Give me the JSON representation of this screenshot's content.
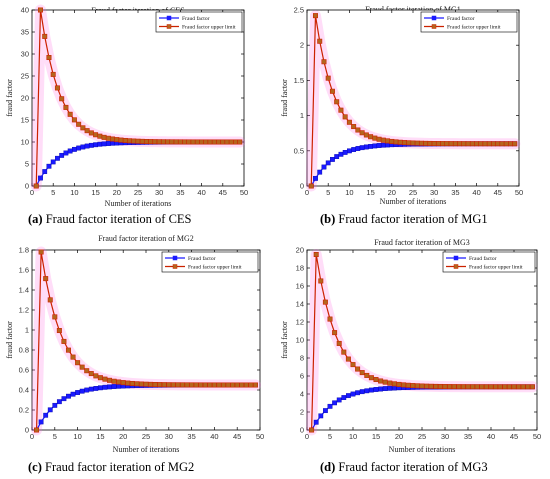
{
  "colors": {
    "base_series": "#1a1aff",
    "upper_series": "#cc2200",
    "upper_marker_fill": "#b5651d",
    "glow": "#ff66dd",
    "frame": "#000000"
  },
  "chart_data": [
    {
      "type": "line",
      "title": "Fraud factor iteration of CES",
      "xlabel": "Number of iterations",
      "ylabel": "fraud factor",
      "xlim": [
        0,
        50
      ],
      "ylim": [
        0,
        40
      ],
      "xticks": [
        0,
        5,
        10,
        15,
        20,
        25,
        30,
        35,
        40,
        45,
        50
      ],
      "yticks": [
        0,
        5,
        10,
        15,
        20,
        25,
        30,
        35,
        40
      ],
      "legend": "top-right",
      "grid": false,
      "caption_letter": "(a)",
      "caption_text": " Fraud factor iteration of CES",
      "series": [
        {
          "name": "Fraud factor",
          "start": 0,
          "limit": 10,
          "decay": 0.82
        },
        {
          "name": "Fraud factor upper limit",
          "start": 0,
          "peak": 40,
          "limit": 10,
          "decay": 0.8
        }
      ]
    },
    {
      "type": "line",
      "title": "Fraud factor iteration of MG1",
      "xlabel": "Number of iterations",
      "ylabel": "fraud factor",
      "xlim": [
        0,
        50
      ],
      "ylim": [
        0,
        2.5
      ],
      "xticks": [
        0,
        5,
        10,
        15,
        20,
        25,
        30,
        35,
        40,
        45,
        50
      ],
      "yticks": [
        0,
        0.5,
        1,
        1.5,
        2,
        2.5
      ],
      "legend": "top-right",
      "grid": false,
      "caption_letter": "(b)",
      "caption_text": " Fraud factor iteration of MG1",
      "series": [
        {
          "name": "Fraud factor",
          "start": 0,
          "limit": 0.6,
          "decay": 0.82
        },
        {
          "name": "Fraud factor upper limit",
          "start": 0,
          "peak": 2.42,
          "limit": 0.6,
          "decay": 0.8
        }
      ]
    },
    {
      "type": "line",
      "title": "Fraud factor iteration of MG2",
      "xlabel": "Number of iterations",
      "ylabel": "fraud factor",
      "xlim": [
        0,
        50
      ],
      "ylim": [
        0,
        1.8
      ],
      "xticks": [
        0,
        5,
        10,
        15,
        20,
        25,
        30,
        35,
        40,
        45,
        50
      ],
      "yticks": [
        0,
        0.2,
        0.4,
        0.6,
        0.8,
        1,
        1.2,
        1.4,
        1.6,
        1.8
      ],
      "legend": "top-right",
      "grid": false,
      "caption_letter": "(c)",
      "caption_text": " Fraud factor iteration of MG2",
      "series": [
        {
          "name": "Fraud factor",
          "start": 0,
          "limit": 0.45,
          "decay": 0.82
        },
        {
          "name": "Fraud factor upper limit",
          "start": 0,
          "peak": 1.78,
          "limit": 0.45,
          "decay": 0.8
        }
      ]
    },
    {
      "type": "line",
      "title": "Fraud factor iteration of MG3",
      "xlabel": "Number of iterations",
      "ylabel": "fraud factor",
      "xlim": [
        0,
        50
      ],
      "ylim": [
        0,
        20
      ],
      "xticks": [
        0,
        5,
        10,
        15,
        20,
        25,
        30,
        35,
        40,
        45,
        50
      ],
      "yticks": [
        0,
        2,
        4,
        6,
        8,
        10,
        12,
        14,
        16,
        18,
        20
      ],
      "legend": "top-right",
      "grid": false,
      "caption_letter": "(d)",
      "caption_text": " Fraud factor iteration of MG3",
      "series": [
        {
          "name": "Fraud factor",
          "start": 0,
          "limit": 4.8,
          "decay": 0.82
        },
        {
          "name": "Fraud factor upper limit",
          "start": 0,
          "peak": 19.5,
          "limit": 4.8,
          "decay": 0.8
        }
      ]
    }
  ]
}
